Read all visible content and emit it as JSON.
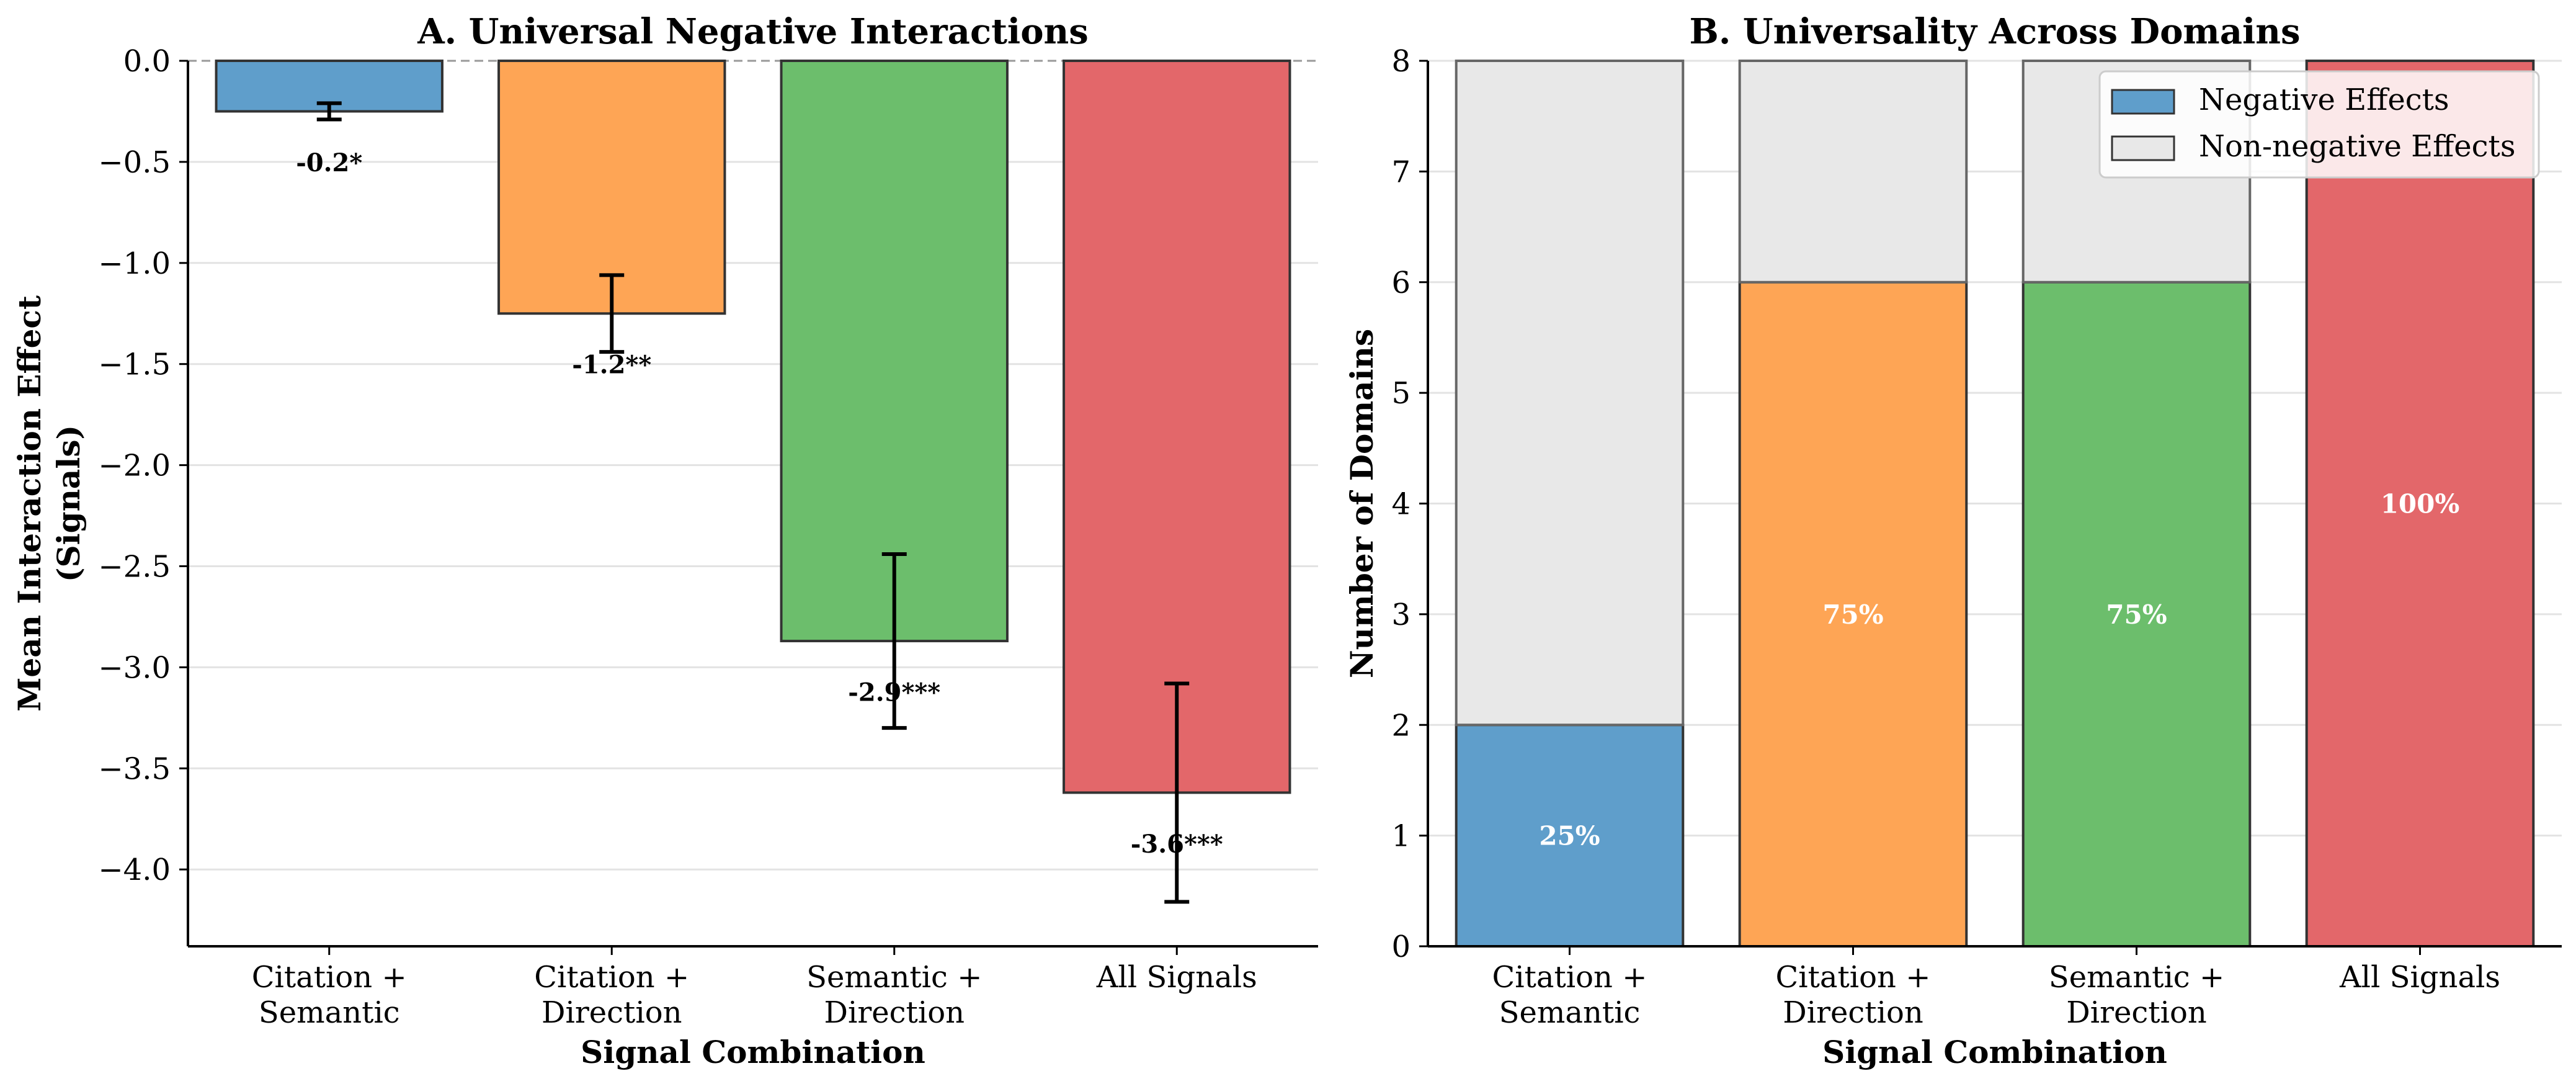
{
  "chart_data": [
    {
      "type": "bar",
      "title": "A. Universal Negative Interactions",
      "xlabel": "Signal Combination",
      "ylabel": "Mean Interaction Effect\n(Signals)",
      "categories": [
        "Citation +\nSemantic",
        "Citation +\nDirection",
        "Semantic +\nDirection",
        "All Signals"
      ],
      "values": [
        -0.25,
        -1.25,
        -2.87,
        -3.62
      ],
      "error": [
        0.04,
        0.19,
        0.43,
        0.54
      ],
      "labels": [
        "-0.2*",
        "-1.2**",
        "-2.9***",
        "-3.6***"
      ],
      "colors": [
        "#5f9ecb",
        "#fea555",
        "#6cbe6c",
        "#e3676a"
      ],
      "ylim": [
        -4.38,
        0.0
      ],
      "yticks": [
        0.0,
        -0.5,
        -1.0,
        -1.5,
        -2.0,
        -2.5,
        -3.0,
        -3.5,
        -4.0
      ],
      "ytick_labels": [
        "0.0",
        "−0.5",
        "−1.0",
        "−1.5",
        "−2.0",
        "−2.5",
        "−3.0",
        "−3.5",
        "−4.0"
      ],
      "grid": "horizontal",
      "zero_line": "dashed"
    },
    {
      "type": "bar",
      "stacked": true,
      "title": "B. Universality Across Domains",
      "xlabel": "Signal Combination",
      "ylabel": "Number of Domains",
      "categories": [
        "Citation +\nSemantic",
        "Citation +\nDirection",
        "Semantic +\nDirection",
        "All Signals"
      ],
      "series": [
        {
          "name": "Negative Effects",
          "values": [
            2,
            6,
            6,
            8
          ],
          "colors": [
            "#5f9ecb",
            "#fea555",
            "#6cbe6c",
            "#e3676a"
          ]
        },
        {
          "name": "Non-negative Effects",
          "values": [
            6,
            2,
            2,
            0
          ],
          "color": "#e8e8e8"
        }
      ],
      "labels": [
        "25%",
        "75%",
        "75%",
        "100%"
      ],
      "ylim": [
        0,
        8
      ],
      "yticks": [
        0,
        1,
        2,
        3,
        4,
        5,
        6,
        7,
        8
      ],
      "ytick_labels": [
        "0",
        "1",
        "2",
        "3",
        "4",
        "5",
        "6",
        "7",
        "8"
      ],
      "grid": "horizontal",
      "legend": "top-right",
      "legend_swatch_colors": [
        "#5f9ecb",
        "#e8e8e8"
      ]
    }
  ]
}
